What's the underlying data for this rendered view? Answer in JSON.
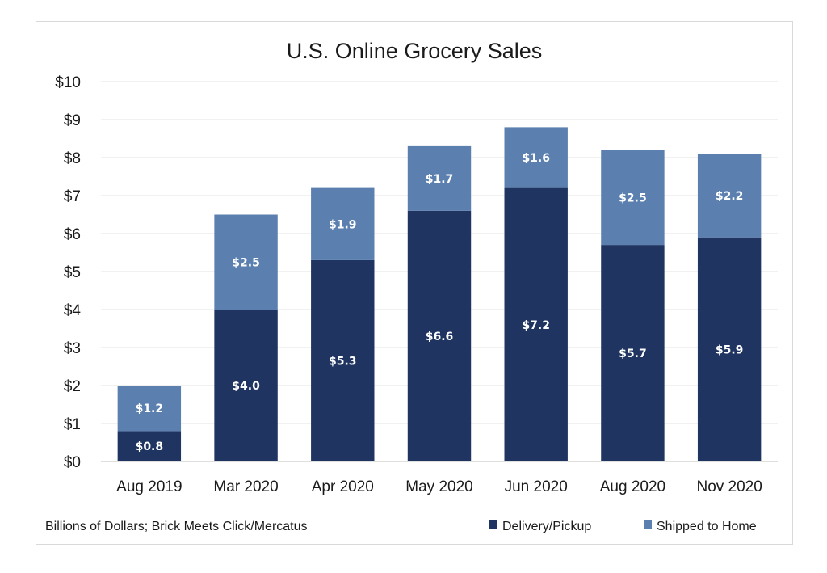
{
  "chart_data": {
    "type": "bar",
    "stacked": true,
    "title": "U.S. Online Grocery Sales",
    "categories": [
      "Aug 2019",
      "Mar 2020",
      "Apr 2020",
      "May 2020",
      "Jun 2020",
      "Aug 2020",
      "Nov 2020"
    ],
    "series": [
      {
        "name": "Delivery/Pickup",
        "values": [
          0.8,
          4.0,
          5.3,
          6.6,
          7.2,
          5.7,
          5.9
        ],
        "labels": [
          "$0.8",
          "$4.0",
          "$5.3",
          "$6.6",
          "$7.2",
          "$5.7",
          "$5.9"
        ],
        "color": "#1f3461"
      },
      {
        "name": "Shipped to Home",
        "values": [
          1.2,
          2.5,
          1.9,
          1.7,
          1.6,
          2.5,
          2.2
        ],
        "labels": [
          "$1.2",
          "$2.5",
          "$1.9",
          "$1.7",
          "$1.6",
          "$2.5",
          "$2.2"
        ],
        "color": "#5b80b0"
      }
    ],
    "ylim": [
      0,
      10
    ],
    "yticks": [
      "$0",
      "$1",
      "$2",
      "$3",
      "$4",
      "$5",
      "$6",
      "$7",
      "$8",
      "$9",
      "$10"
    ],
    "grid": true,
    "legend_position": "bottom-right",
    "note": "Billions of Dollars; Brick Meets Click/Mercatus"
  }
}
